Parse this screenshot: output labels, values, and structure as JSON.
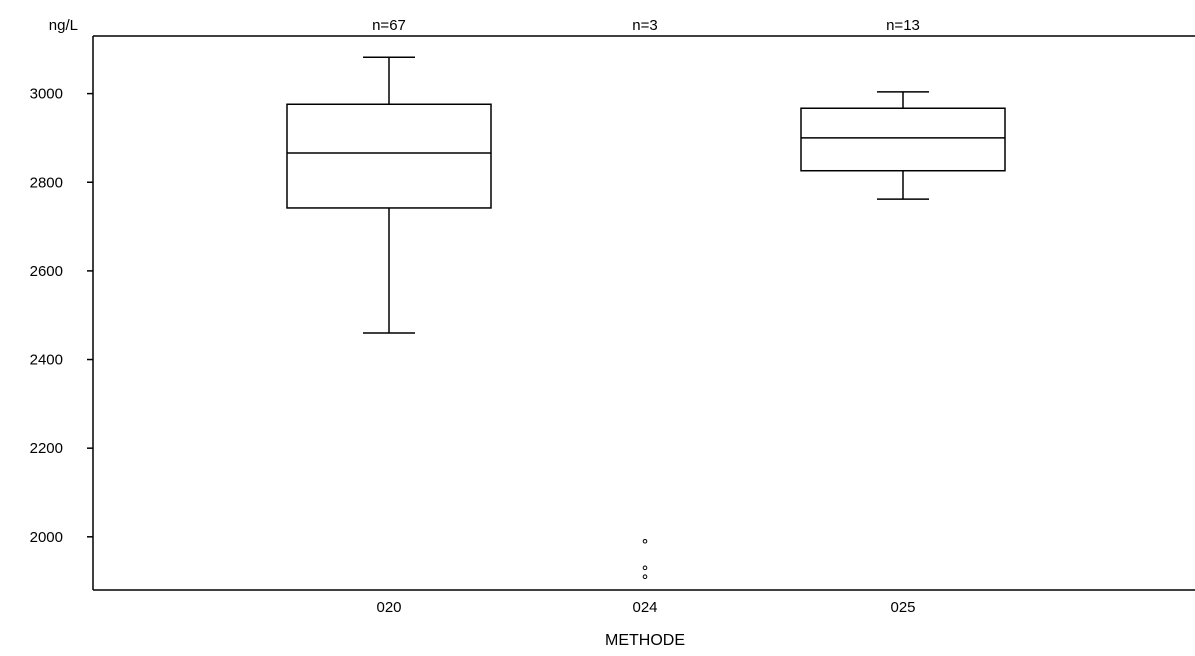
{
  "chart_data": {
    "type": "boxplot",
    "ylabel": "ng/L",
    "xlabel": "METHODE",
    "ylim": [
      1880,
      3130
    ],
    "yticks": [
      2000,
      2200,
      2400,
      2600,
      2800,
      3000
    ],
    "categories": [
      "020",
      "024",
      "025"
    ],
    "counts": [
      "n=67",
      "n=3",
      "n=13"
    ],
    "boxes": [
      {
        "category": "020",
        "whisker_low": 2460,
        "q1": 2742,
        "median": 2866,
        "q3": 2976,
        "whisker_high": 3082,
        "points": []
      },
      {
        "category": "024",
        "points": [
          1990,
          1930,
          1910
        ]
      },
      {
        "category": "025",
        "whisker_low": 2762,
        "q1": 2826,
        "median": 2900,
        "q3": 2967,
        "whisker_high": 3004,
        "points": []
      }
    ],
    "grid": false,
    "legend": "none",
    "colors": {
      "line": "#000000",
      "background": "#ffffff"
    }
  }
}
